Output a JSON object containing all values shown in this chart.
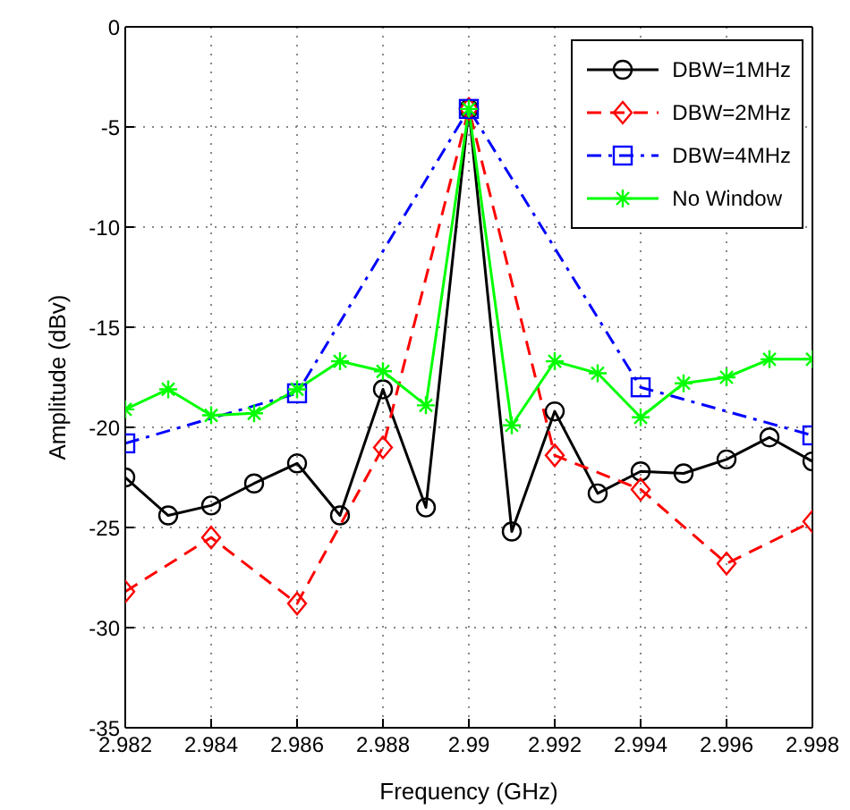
{
  "chart_data": {
    "type": "line",
    "xlabel": "Frequency (GHz)",
    "ylabel": "Amplitude (dBv)",
    "xlim": [
      2.982,
      2.998
    ],
    "xticks": [
      2.982,
      2.984,
      2.986,
      2.988,
      2.99,
      2.992,
      2.994,
      2.996,
      2.998
    ],
    "ylim": [
      -35,
      0
    ],
    "yticks": [
      -35,
      -30,
      -25,
      -20,
      -15,
      -10,
      -5,
      0
    ],
    "grid": true,
    "legend": "top right",
    "series": [
      {
        "name": "DBW=1MHz",
        "color": "#000000",
        "marker": "circle",
        "line_style": "solid",
        "x": [
          2.982,
          2.983,
          2.984,
          2.985,
          2.986,
          2.987,
          2.988,
          2.989,
          2.99,
          2.991,
          2.992,
          2.993,
          2.994,
          2.995,
          2.996,
          2.997,
          2.998
        ],
        "values": [
          -22.5,
          -24.4,
          -23.9,
          -22.8,
          -21.8,
          -24.4,
          -18.1,
          -24.0,
          -4.1,
          -25.2,
          -19.2,
          -23.3,
          -22.2,
          -22.3,
          -21.6,
          -20.5,
          -21.7
        ]
      },
      {
        "name": "DBW=2MHz",
        "color": "#ff0000",
        "marker": "diamond",
        "line_style": "dashed",
        "x": [
          2.982,
          2.984,
          2.986,
          2.988,
          2.99,
          2.992,
          2.994,
          2.996,
          2.998
        ],
        "values": [
          -28.2,
          -25.5,
          -28.8,
          -21.0,
          -4.1,
          -21.4,
          -23.1,
          -26.8,
          -24.7
        ]
      },
      {
        "name": "DBW=4MHz",
        "color": "#0000ff",
        "marker": "square",
        "line_style": "dashdot",
        "x": [
          2.982,
          2.986,
          2.99,
          2.994,
          2.998
        ],
        "values": [
          -20.8,
          -18.3,
          -4.1,
          -18.0,
          -20.4
        ]
      },
      {
        "name": "No Window",
        "color": "#00ff00",
        "marker": "cross",
        "line_style": "solid",
        "x": [
          2.982,
          2.983,
          2.984,
          2.985,
          2.986,
          2.987,
          2.988,
          2.989,
          2.99,
          2.991,
          2.992,
          2.993,
          2.994,
          2.995,
          2.996,
          2.997,
          2.998
        ],
        "values": [
          -19.1,
          -18.1,
          -19.4,
          -19.3,
          -18.1,
          -16.7,
          -17.2,
          -18.9,
          -4.1,
          -19.9,
          -16.7,
          -17.3,
          -19.5,
          -17.8,
          -17.5,
          -16.6,
          -16.6
        ]
      }
    ]
  }
}
